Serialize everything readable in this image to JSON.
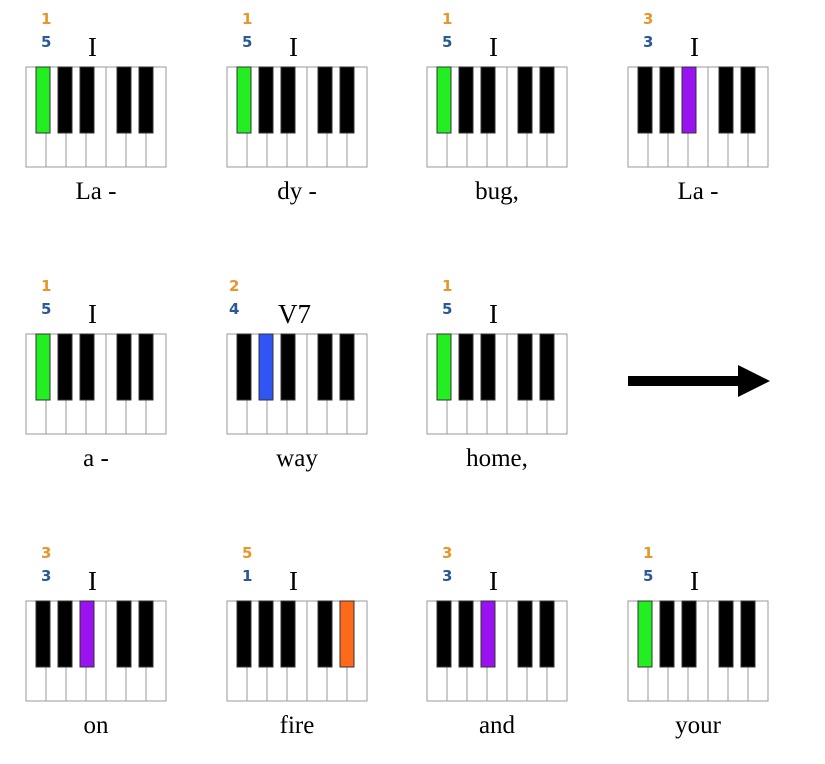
{
  "colors": {
    "top_finger": "#e8962a",
    "bottom_finger": "#2a5a95",
    "white_key": "#ffffff",
    "black_key": "#000000",
    "outline": "#999999",
    "green": "#22ee22",
    "purple": "#9a12f0",
    "blue": "#2f56f5",
    "orange": "#ff6a1a"
  },
  "cells": [
    {
      "top": "1",
      "bottom": "5",
      "chord": "I",
      "lyric": "La -",
      "highlight": {
        "key": 0,
        "color": "green"
      }
    },
    {
      "top": "1",
      "bottom": "5",
      "chord": "I",
      "lyric": "dy -",
      "highlight": {
        "key": 0,
        "color": "green"
      }
    },
    {
      "top": "1",
      "bottom": "5",
      "chord": "I",
      "lyric": "bug,",
      "highlight": {
        "key": 0,
        "color": "green"
      }
    },
    {
      "top": "3",
      "bottom": "3",
      "chord": "I",
      "lyric": "La -",
      "highlight": {
        "key": 2,
        "color": "purple"
      }
    },
    {
      "top": "1",
      "bottom": "5",
      "chord": "I",
      "lyric": "a -",
      "highlight": {
        "key": 0,
        "color": "green"
      }
    },
    {
      "top": "2",
      "bottom": "4",
      "chord": "V7",
      "lyric": "way",
      "highlight": {
        "key": 1,
        "color": "blue"
      }
    },
    {
      "top": "1",
      "bottom": "5",
      "chord": "I",
      "lyric": "home,",
      "highlight": {
        "key": 0,
        "color": "green"
      }
    },
    {
      "top": "3",
      "bottom": "3",
      "chord": "I",
      "lyric": "on",
      "highlight": {
        "key": 2,
        "color": "purple"
      }
    },
    {
      "top": "5",
      "bottom": "1",
      "chord": "I",
      "lyric": "fire",
      "highlight": {
        "key": 4,
        "color": "orange"
      }
    },
    {
      "top": "3",
      "bottom": "3",
      "chord": "I",
      "lyric": "and",
      "highlight": {
        "key": 2,
        "color": "purple"
      }
    },
    {
      "top": "1",
      "bottom": "5",
      "chord": "I",
      "lyric": "your",
      "highlight": {
        "key": 0,
        "color": "green"
      }
    }
  ],
  "arrow": {
    "icon": "right-arrow-icon"
  }
}
